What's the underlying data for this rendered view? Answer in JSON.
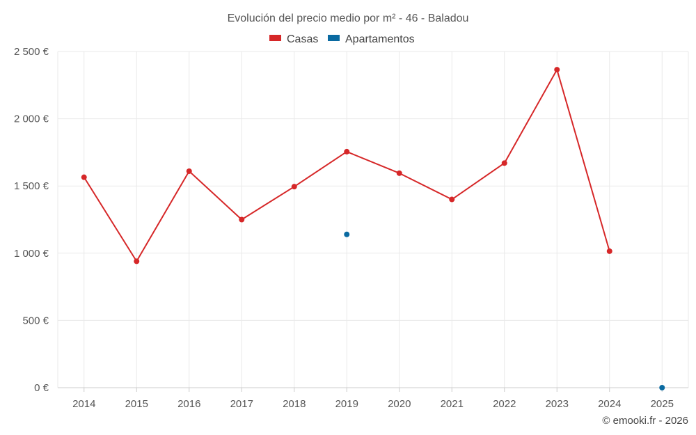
{
  "chart_data": {
    "type": "line",
    "title": "Evolución del precio medio por m² - 46 - Baladou",
    "categories": [
      "2014",
      "2015",
      "2016",
      "2017",
      "2018",
      "2019",
      "2020",
      "2021",
      "2022",
      "2023",
      "2024",
      "2025"
    ],
    "series": [
      {
        "name": "Casas",
        "color": "#d62728",
        "values": [
          1565,
          940,
          1610,
          1250,
          1495,
          1755,
          1595,
          1400,
          1670,
          2365,
          1015,
          null
        ]
      },
      {
        "name": "Apartamentos",
        "color": "#0a6aa1",
        "values": [
          null,
          null,
          null,
          null,
          null,
          1140,
          null,
          null,
          null,
          null,
          null,
          0
        ]
      }
    ],
    "y_ticks": [
      0,
      500,
      1000,
      1500,
      2000,
      2500
    ],
    "y_tick_labels": [
      "0 €",
      "500 €",
      "1 000 €",
      "1 500 €",
      "2 000 €",
      "2 500 €"
    ],
    "ylim": [
      0,
      2500
    ],
    "xlabel": "",
    "ylabel": "",
    "legend_position": "top-center",
    "grid": true
  },
  "footer": {
    "copyright": "© emooki.fr - 2026"
  }
}
